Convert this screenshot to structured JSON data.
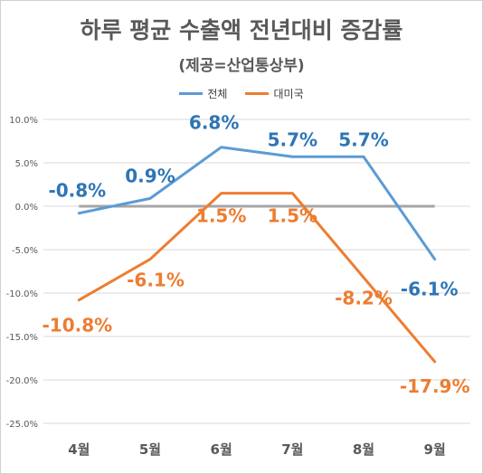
{
  "chart_data": {
    "type": "line",
    "title": "하루 평균 수출액 전년대비 증감률",
    "subtitle": "(제공=산업통상부)",
    "categories": [
      "4월",
      "5월",
      "6월",
      "7월",
      "8월",
      "9월"
    ],
    "series": [
      {
        "name": "전체",
        "color": "#5b9bd5",
        "label_color": "#2e75b6",
        "values": [
          -0.8,
          0.9,
          6.8,
          5.7,
          5.7,
          -6.1
        ],
        "labels": [
          "-0.8%",
          "0.9%",
          "6.8%",
          "5.7%",
          "5.7%",
          "-6.1%"
        ]
      },
      {
        "name": "대미국",
        "color": "#ed7d31",
        "label_color": "#ed7d31",
        "values": [
          -10.8,
          -6.1,
          1.5,
          1.5,
          -8.2,
          -17.9
        ],
        "labels": [
          "-10.8%",
          "-6.1%",
          "1.5%",
          "1.5%",
          "-8.2%",
          "-17.9%"
        ]
      }
    ],
    "ylim": [
      -25,
      10
    ],
    "y_ticks": [
      10,
      5,
      0,
      -5,
      -10,
      -15,
      -20,
      -25
    ],
    "y_tick_labels": [
      "10.0%",
      "5.0%",
      "0.0%",
      "-5.0%",
      "-10.0%",
      "-15.0%",
      "-20.0%",
      "-25.0%"
    ],
    "zero_line_color": "#a6a6a6",
    "grid": true,
    "legend_position": "top"
  }
}
